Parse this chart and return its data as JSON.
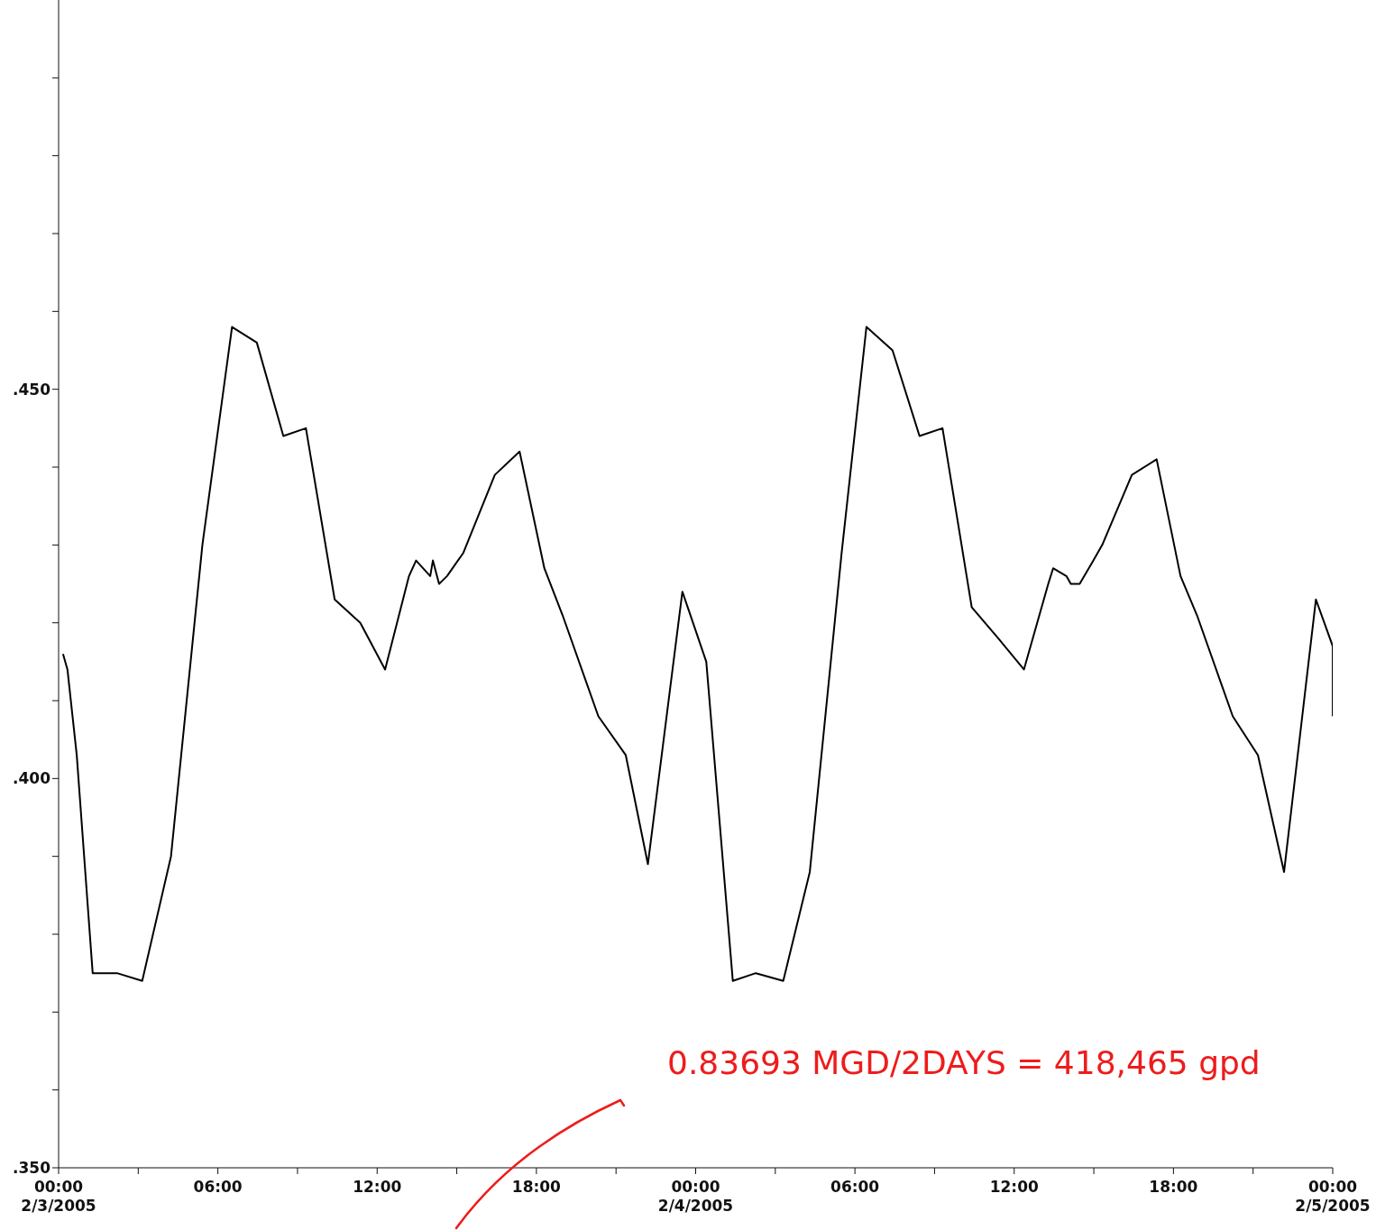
{
  "chart_data": {
    "type": "line",
    "color": "#000000",
    "marker": "none",
    "line_style": "solid",
    "x": [
      "2005-02-03T00:10",
      "2005-02-03T00:20",
      "2005-02-03T00:41",
      "2005-02-03T01:17",
      "2005-02-03T02:12",
      "2005-02-03T03:09",
      "2005-02-03T04:14",
      "2005-02-03T05:25",
      "2005-02-03T06:32",
      "2005-02-03T07:28",
      "2005-02-03T08:28",
      "2005-02-03T09:19",
      "2005-02-03T10:24",
      "2005-02-03T11:22",
      "2005-02-03T12:18",
      "2005-02-03T13:12",
      "2005-02-03T13:28",
      "2005-02-03T14:00",
      "2005-02-03T14:06",
      "2005-02-03T14:20",
      "2005-02-03T14:38",
      "2005-02-03T15:15",
      "2005-02-03T16:26",
      "2005-02-03T17:22",
      "2005-02-03T18:18",
      "2005-02-03T18:59",
      "2005-02-03T20:20",
      "2005-02-03T21:22",
      "2005-02-03T22:12",
      "2005-02-03T23:30",
      "2005-02-04T00:24",
      "2005-02-04T01:24",
      "2005-02-04T02:16",
      "2005-02-04T03:18",
      "2005-02-04T04:18",
      "2005-02-04T05:30",
      "2005-02-04T06:26",
      "2005-02-04T07:25",
      "2005-02-04T08:26",
      "2005-02-04T09:18",
      "2005-02-04T10:24",
      "2005-02-04T11:24",
      "2005-02-04T12:22",
      "2005-02-04T13:17",
      "2005-02-04T13:28",
      "2005-02-04T13:58",
      "2005-02-04T14:08",
      "2005-02-04T14:28",
      "2005-02-04T14:59",
      "2005-02-04T15:19",
      "2005-02-04T16:26",
      "2005-02-04T17:22",
      "2005-02-04T18:16",
      "2005-02-04T18:53",
      "2005-02-04T20:14",
      "2005-02-04T21:11",
      "2005-02-04T22:10",
      "2005-02-04T23:22",
      "2005-02-05T00:00",
      "2005-02-05T00:00"
    ],
    "values": [
      0.416,
      0.414,
      0.403,
      0.375,
      0.375,
      0.374,
      0.39,
      0.43,
      0.458,
      0.456,
      0.444,
      0.445,
      0.423,
      0.42,
      0.414,
      0.426,
      0.428,
      0.426,
      0.428,
      0.425,
      0.426,
      0.429,
      0.439,
      0.442,
      0.427,
      0.421,
      0.408,
      0.403,
      0.389,
      0.424,
      0.415,
      0.374,
      0.375,
      0.374,
      0.388,
      0.429,
      0.458,
      0.455,
      0.444,
      0.445,
      0.422,
      0.418,
      0.414,
      0.425,
      0.427,
      0.426,
      0.425,
      0.425,
      0.428,
      0.43,
      0.439,
      0.441,
      0.426,
      0.421,
      0.408,
      0.403,
      0.388,
      0.423,
      0.417,
      0.408
    ],
    "xlim": [
      "2005-02-03T00:00",
      "2005-02-05T00:00"
    ],
    "xticks": [
      {
        "value": "2005-02-03T00:00",
        "label": "00:00\n2/3/2005"
      },
      {
        "value": "2005-02-03T03:00",
        "label": null
      },
      {
        "value": "2005-02-03T06:00",
        "label": "06:00"
      },
      {
        "value": "2005-02-03T09:00",
        "label": null
      },
      {
        "value": "2005-02-03T12:00",
        "label": "12:00"
      },
      {
        "value": "2005-02-03T15:00",
        "label": null
      },
      {
        "value": "2005-02-03T18:00",
        "label": "18:00"
      },
      {
        "value": "2005-02-03T21:00",
        "label": null
      },
      {
        "value": "2005-02-04T00:00",
        "label": "00:00\n2/4/2005"
      },
      {
        "value": "2005-02-04T03:00",
        "label": null
      },
      {
        "value": "2005-02-04T06:00",
        "label": "06:00"
      },
      {
        "value": "2005-02-04T09:00",
        "label": null
      },
      {
        "value": "2005-02-04T12:00",
        "label": "12:00"
      },
      {
        "value": "2005-02-04T15:00",
        "label": null
      },
      {
        "value": "2005-02-04T18:00",
        "label": "18:00"
      },
      {
        "value": "2005-02-04T21:00",
        "label": null
      },
      {
        "value": "2005-02-05T00:00",
        "label": "00:00\n2/5/2005"
      }
    ],
    "ylim": [
      0.35,
      0.5
    ],
    "yticks": [
      {
        "value": 0.35,
        "label": ".350"
      },
      {
        "value": 0.36,
        "label": null
      },
      {
        "value": 0.37,
        "label": null
      },
      {
        "value": 0.38,
        "label": null
      },
      {
        "value": 0.39,
        "label": null
      },
      {
        "value": 0.4,
        "label": ".400"
      },
      {
        "value": 0.41,
        "label": null
      },
      {
        "value": 0.42,
        "label": null
      },
      {
        "value": 0.43,
        "label": null
      },
      {
        "value": 0.44,
        "label": null
      },
      {
        "value": 0.45,
        "label": ".450"
      },
      {
        "value": 0.46,
        "label": null
      },
      {
        "value": 0.47,
        "label": null
      },
      {
        "value": 0.48,
        "label": null
      },
      {
        "value": 0.49,
        "label": null
      }
    ],
    "annotations": [
      "0.83693 MGD/2DAYS = 418,465 gpd"
    ]
  }
}
